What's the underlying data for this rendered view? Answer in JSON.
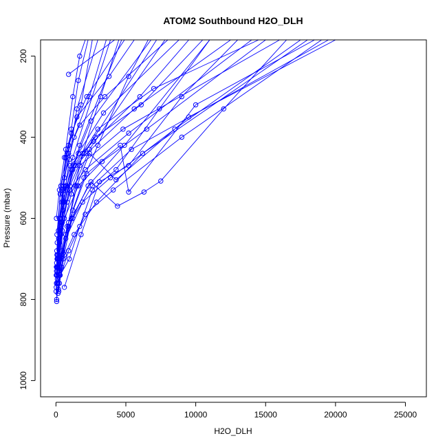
{
  "chart_data": {
    "type": "line",
    "title": "ATOM2 Southbound H2O_DLH",
    "xlabel": "H2O_DLH",
    "ylabel": "Pressure (mbar)",
    "xlim": [
      -1100,
      26500
    ],
    "ylim": [
      1040,
      160
    ],
    "y_reversed": true,
    "x_ticks": [
      0,
      5000,
      10000,
      15000,
      20000,
      25000
    ],
    "y_ticks": [
      200,
      400,
      600,
      800,
      1000
    ],
    "grid": false,
    "legend": "none",
    "color": "#0000ff",
    "series": [
      {
        "points": [
          [
            900,
            245
          ],
          [
            4200,
            160
          ]
        ]
      },
      {
        "points": [
          [
            150,
            785
          ],
          [
            300,
            700
          ],
          [
            500,
            560
          ],
          [
            700,
            430
          ],
          [
            1200,
            300
          ],
          [
            1700,
            200
          ],
          [
            2100,
            160
          ]
        ]
      },
      {
        "points": [
          [
            180,
            775
          ],
          [
            250,
            740
          ],
          [
            400,
            690
          ],
          [
            550,
            520
          ],
          [
            900,
            440
          ],
          [
            1100,
            380
          ],
          [
            1600,
            260
          ],
          [
            2300,
            160
          ]
        ]
      },
      {
        "points": [
          [
            50,
            805
          ],
          [
            100,
            730
          ],
          [
            350,
            640
          ],
          [
            700,
            520
          ],
          [
            950,
            455
          ],
          [
            1500,
            330
          ],
          [
            3000,
            160
          ]
        ]
      },
      {
        "points": [
          [
            200,
            780
          ],
          [
            400,
            720
          ],
          [
            900,
            610
          ],
          [
            1400,
            520
          ],
          [
            1900,
            440
          ],
          [
            3200,
            300
          ],
          [
            4500,
            160
          ]
        ]
      },
      {
        "points": [
          [
            250,
            760
          ],
          [
            600,
            690
          ],
          [
            1200,
            580
          ],
          [
            2000,
            500
          ],
          [
            3000,
            420
          ],
          [
            5200,
            250
          ],
          [
            6600,
            160
          ]
        ]
      },
      {
        "points": [
          [
            300,
            740
          ],
          [
            950,
            700
          ],
          [
            1700,
            620
          ],
          [
            2600,
            530
          ],
          [
            4300,
            480
          ],
          [
            7400,
            330
          ],
          [
            11000,
            160
          ]
        ]
      },
      {
        "points": [
          [
            600,
            770
          ],
          [
            1800,
            640
          ],
          [
            3100,
            510
          ],
          [
            5200,
            470
          ],
          [
            9000,
            300
          ],
          [
            13000,
            160
          ]
        ]
      },
      {
        "points": [
          [
            200,
            730
          ],
          [
            1100,
            600
          ],
          [
            2500,
            510
          ],
          [
            4400,
            570
          ],
          [
            6300,
            535
          ],
          [
            7500,
            508
          ],
          [
            12000,
            330
          ],
          [
            16500,
            160
          ]
        ]
      },
      {
        "points": [
          [
            150,
            720
          ],
          [
            800,
            620
          ],
          [
            2200,
            490
          ],
          [
            4600,
            420
          ],
          [
            5200,
            535
          ],
          [
            10000,
            320
          ],
          [
            18500,
            160
          ]
        ]
      },
      {
        "points": [
          [
            100,
            750
          ],
          [
            700,
            640
          ],
          [
            1500,
            520
          ],
          [
            2400,
            440
          ],
          [
            4300,
            505
          ],
          [
            9500,
            350
          ],
          [
            20000,
            160
          ]
        ]
      },
      {
        "points": [
          [
            120,
            700
          ],
          [
            500,
            580
          ],
          [
            1300,
            470
          ],
          [
            3000,
            380
          ],
          [
            7000,
            280
          ],
          [
            14500,
            160
          ]
        ]
      },
      {
        "points": [
          [
            80,
            690
          ],
          [
            400,
            560
          ],
          [
            1000,
            470
          ],
          [
            2700,
            410
          ],
          [
            6000,
            300
          ],
          [
            9500,
            160
          ]
        ]
      },
      {
        "points": [
          [
            60,
            680
          ],
          [
            300,
            540
          ],
          [
            700,
            450
          ],
          [
            1500,
            350
          ],
          [
            3800,
            250
          ],
          [
            5600,
            160
          ]
        ]
      },
      {
        "points": [
          [
            50,
            710
          ],
          [
            250,
            600
          ],
          [
            600,
            500
          ],
          [
            1300,
            400
          ],
          [
            2400,
            300
          ],
          [
            3600,
            160
          ]
        ]
      },
      {
        "points": [
          [
            40,
            760
          ],
          [
            200,
            650
          ],
          [
            450,
            530
          ],
          [
            900,
            420
          ],
          [
            1800,
            320
          ],
          [
            2600,
            160
          ]
        ]
      },
      {
        "points": [
          [
            30,
            600
          ],
          [
            250,
            530
          ],
          [
            600,
            450
          ],
          [
            1100,
            390
          ],
          [
            2200,
            300
          ],
          [
            4900,
            160
          ]
        ]
      },
      {
        "points": [
          [
            70,
            640
          ],
          [
            350,
            520
          ],
          [
            800,
            440
          ],
          [
            1700,
            370
          ],
          [
            3500,
            300
          ],
          [
            8000,
            160
          ]
        ]
      },
      {
        "points": [
          [
            90,
            660
          ],
          [
            500,
            540
          ],
          [
            1200,
            480
          ],
          [
            2200,
            440
          ],
          [
            5600,
            330
          ],
          [
            12500,
            160
          ]
        ]
      },
      {
        "points": [
          [
            110,
            720
          ],
          [
            600,
            600
          ],
          [
            1600,
            520
          ],
          [
            3300,
            460
          ],
          [
            6500,
            380
          ],
          [
            15000,
            160
          ]
        ]
      },
      {
        "points": [
          [
            130,
            740
          ],
          [
            700,
            650
          ],
          [
            1900,
            560
          ],
          [
            3900,
            500
          ],
          [
            8500,
            380
          ],
          [
            17500,
            160
          ]
        ]
      },
      {
        "points": [
          [
            160,
            760
          ],
          [
            900,
            680
          ],
          [
            2100,
            590
          ],
          [
            4100,
            530
          ],
          [
            9000,
            400
          ],
          [
            19000,
            160
          ]
        ]
      },
      {
        "points": [
          [
            60,
            740
          ],
          [
            450,
            680
          ],
          [
            1200,
            600
          ],
          [
            2600,
            520
          ],
          [
            5400,
            430
          ],
          [
            19500,
            160
          ]
        ]
      },
      {
        "points": [
          [
            40,
            730
          ],
          [
            250,
            660
          ],
          [
            800,
            560
          ],
          [
            1700,
            470
          ],
          [
            4800,
            380
          ],
          [
            16000,
            160
          ]
        ]
      },
      {
        "points": [
          [
            80,
            700
          ],
          [
            350,
            610
          ],
          [
            1000,
            530
          ],
          [
            2100,
            480
          ],
          [
            5200,
            390
          ],
          [
            14000,
            160
          ]
        ]
      },
      {
        "points": [
          [
            100,
            760
          ],
          [
            500,
            700
          ],
          [
            1300,
            640
          ],
          [
            2900,
            560
          ],
          [
            6200,
            440
          ],
          [
            18000,
            160
          ]
        ]
      },
      {
        "points": [
          [
            50,
            800
          ],
          [
            300,
            720
          ],
          [
            900,
            620
          ],
          [
            2300,
            520
          ],
          [
            4900,
            420
          ],
          [
            11000,
            160
          ]
        ]
      },
      {
        "points": [
          [
            150,
            690
          ],
          [
            600,
            560
          ],
          [
            1400,
            470
          ],
          [
            2800,
            400
          ],
          [
            6100,
            320
          ],
          [
            10500,
            160
          ]
        ]
      },
      {
        "points": [
          [
            20,
            770
          ],
          [
            120,
            700
          ],
          [
            450,
            610
          ],
          [
            1000,
            520
          ],
          [
            2000,
            440
          ],
          [
            7200,
            160
          ]
        ]
      },
      {
        "points": [
          [
            30,
            720
          ],
          [
            180,
            630
          ],
          [
            500,
            560
          ],
          [
            1100,
            480
          ],
          [
            2500,
            360
          ],
          [
            6800,
            160
          ]
        ]
      },
      {
        "points": [
          [
            70,
            690
          ],
          [
            300,
            600
          ],
          [
            750,
            520
          ],
          [
            1600,
            440
          ],
          [
            3400,
            340
          ],
          [
            8800,
            160
          ]
        ]
      },
      {
        "points": [
          [
            10,
            780
          ],
          [
            60,
            720
          ],
          [
            200,
            650
          ],
          [
            550,
            560
          ],
          [
            1200,
            450
          ],
          [
            3900,
            160
          ]
        ]
      },
      {
        "points": [
          [
            20,
            740
          ],
          [
            90,
            690
          ],
          [
            300,
            620
          ],
          [
            800,
            530
          ],
          [
            1700,
            420
          ],
          [
            4700,
            160
          ]
        ]
      },
      {
        "points": [
          [
            40,
            760
          ],
          [
            160,
            700
          ],
          [
            450,
            630
          ],
          [
            1100,
            540
          ],
          [
            2400,
            430
          ],
          [
            7800,
            160
          ]
        ]
      }
    ]
  }
}
